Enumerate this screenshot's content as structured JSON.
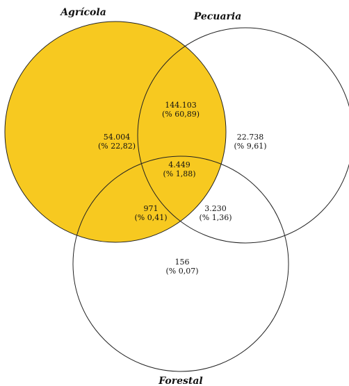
{
  "colors": {
    "agricola_fill": "#f7c920",
    "outline": "#222222",
    "text": "#111111",
    "background": "#ffffff"
  },
  "sets": {
    "agricola": {
      "label": "Agrícola"
    },
    "pecuaria": {
      "label": "Pecuaria"
    },
    "forestal": {
      "label": "Forestal"
    }
  },
  "regions": {
    "agricola_only": {
      "count": "54.004",
      "percent": "(% 22,82)"
    },
    "agricola_pecuaria": {
      "count": "144.103",
      "percent": "(% 60,89)"
    },
    "pecuaria_only": {
      "count": "22.738",
      "percent": "(% 9,61)"
    },
    "all_three": {
      "count": "4.449",
      "percent": "(% 1,88)"
    },
    "agricola_forestal": {
      "count": "971",
      "percent": "(% 0,41)"
    },
    "pecuaria_forestal": {
      "count": "3.230",
      "percent": "(% 1,36)"
    },
    "forestal_only": {
      "count": "156",
      "percent": "(% 0,07)"
    }
  }
}
